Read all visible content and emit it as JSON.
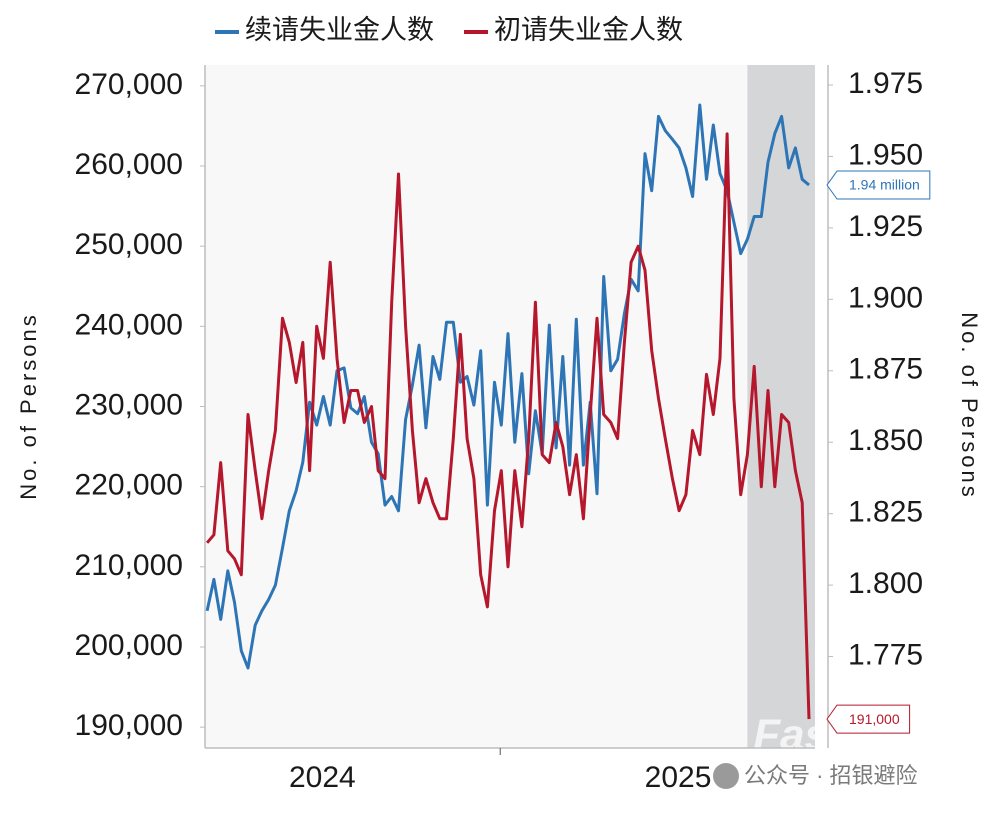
{
  "chart_data": {
    "type": "line",
    "legend_position": "top",
    "x": [
      2024.176,
      2024.195,
      2024.214,
      2024.234,
      2024.253,
      2024.272,
      2024.291,
      2024.311,
      2024.33,
      2024.349,
      2024.368,
      2024.388,
      2024.407,
      2024.426,
      2024.445,
      2024.464,
      2024.484,
      2024.503,
      2024.522,
      2024.541,
      2024.561,
      2024.58,
      2024.599,
      2024.618,
      2024.638,
      2024.657,
      2024.676,
      2024.695,
      2024.714,
      2024.734,
      2024.753,
      2024.772,
      2024.791,
      2024.811,
      2024.83,
      2024.849,
      2024.868,
      2024.888,
      2024.907,
      2024.926,
      2024.945,
      2024.964,
      2024.984,
      2025.003,
      2025.022,
      2025.041,
      2025.061,
      2025.08,
      2025.099,
      2025.118,
      2025.138,
      2025.157,
      2025.176,
      2025.195,
      2025.214,
      2025.234,
      2025.253,
      2025.272,
      2025.291,
      2025.311,
      2025.33,
      2025.349,
      2025.368,
      2025.388,
      2025.407,
      2025.426,
      2025.445,
      2025.464,
      2025.484,
      2025.503,
      2025.522,
      2025.541,
      2025.561,
      2025.58,
      2025.599,
      2025.618,
      2025.638,
      2025.657,
      2025.676,
      2025.695,
      2025.714,
      2025.734,
      2025.753,
      2025.772,
      2025.791,
      2025.811,
      2025.83,
      2025.849,
      2025.868
    ],
    "xlim": [
      2024.17,
      2025.885
    ],
    "xticks": [
      {
        "value": 2024.5,
        "label": "2024"
      },
      {
        "value": 2025.5,
        "label": "2025"
      }
    ],
    "xtick_marks": [
      2025
    ],
    "shaded_range": [
      2025.695,
      2025.885
    ],
    "ylabel": "No.  of Persons",
    "ylim": [
      187400,
      272600
    ],
    "yticks": [
      {
        "value": 190000,
        "label": "190,000"
      },
      {
        "value": 200000,
        "label": "200,000"
      },
      {
        "value": 210000,
        "label": "210,000"
      },
      {
        "value": 220000,
        "label": "220,000"
      },
      {
        "value": 230000,
        "label": "230,000"
      },
      {
        "value": 240000,
        "label": "240,000"
      },
      {
        "value": 250000,
        "label": "250,000"
      },
      {
        "value": 260000,
        "label": "260,000"
      },
      {
        "value": 270000,
        "label": "270,000"
      }
    ],
    "y2label": "No.  of Persons",
    "y2lim": [
      1.743,
      1.982
    ],
    "y2ticks": [
      1.775,
      {
        "value": 1.8,
        "label": "1.800"
      },
      1.825,
      {
        "value": 1.85,
        "label": "1.850"
      },
      1.875,
      {
        "value": 1.9,
        "label": "1.900"
      },
      1.925,
      {
        "value": 1.95,
        "label": "1.950"
      },
      1.975
    ],
    "series": [
      {
        "name": "续请失业金人数",
        "color": "#2e75b6",
        "axis": "y2",
        "end_label": "1.94 million",
        "values": [
          1.791,
          1.802,
          1.788,
          1.805,
          1.794,
          1.777,
          1.771,
          1.786,
          1.791,
          1.795,
          1.8,
          1.813,
          1.826,
          1.833,
          1.843,
          1.864,
          1.856,
          1.866,
          1.856,
          1.875,
          1.876,
          1.862,
          1.86,
          1.866,
          1.85,
          1.846,
          1.828,
          1.831,
          1.826,
          1.858,
          1.87,
          1.884,
          1.855,
          1.88,
          1.872,
          1.892,
          1.892,
          1.871,
          1.873,
          1.863,
          1.882,
          1.828,
          1.871,
          1.856,
          1.888,
          1.85,
          1.874,
          1.839,
          1.861,
          1.846,
          1.891,
          1.848,
          1.88,
          1.842,
          1.893,
          1.842,
          1.864,
          1.832,
          1.908,
          1.875,
          1.879,
          1.895,
          1.907,
          1.903,
          1.951,
          1.938,
          1.964,
          1.959,
          1.956,
          1.953,
          1.946,
          1.936,
          1.968,
          1.942,
          1.961,
          1.944,
          1.938,
          1.927,
          1.916,
          1.921,
          1.929,
          1.929,
          1.948,
          1.958,
          1.964,
          1.946,
          1.953,
          1.942,
          1.94
        ]
      },
      {
        "name": "初请失业金人数",
        "color": "#b5172c",
        "end_label": "191,000",
        "values": [
          213000,
          214000,
          223000,
          212000,
          211000,
          209000,
          229000,
          222000,
          216000,
          222000,
          227000,
          241000,
          238000,
          233000,
          238000,
          222000,
          240000,
          236000,
          248000,
          236000,
          228000,
          232000,
          232000,
          228000,
          230000,
          222000,
          221000,
          243000,
          259000,
          240000,
          227000,
          218000,
          221000,
          218000,
          216000,
          216000,
          226000,
          239000,
          226000,
          221000,
          209000,
          205000,
          217000,
          222000,
          210000,
          222000,
          215000,
          226000,
          243000,
          224000,
          223000,
          228000,
          225000,
          219000,
          224000,
          216000,
          229000,
          241000,
          229000,
          228000,
          226000,
          238000,
          248000,
          250000,
          247000,
          237000,
          231000,
          226000,
          221000,
          217000,
          219000,
          227000,
          224000,
          234000,
          229000,
          236000,
          264000,
          231000,
          219000,
          224000,
          235000,
          220000,
          232000,
          220000,
          229000,
          228000,
          222000,
          218000,
          191000
        ]
      }
    ],
    "watermark": {
      "brand": "FastBull",
      "source": "公众号 · 招银避险"
    }
  }
}
